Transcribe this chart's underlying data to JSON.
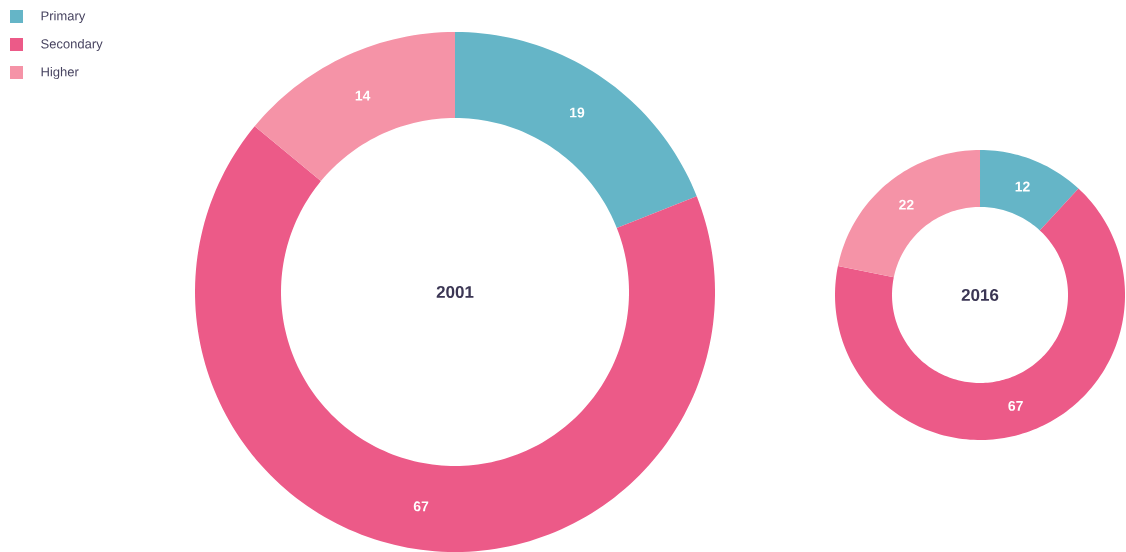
{
  "chart_data": {
    "type": "donut",
    "categories": [
      "Primary",
      "Secondary",
      "Higher"
    ],
    "colors": [
      "#65b5c7",
      "#ec5a88",
      "#f593a7"
    ],
    "series": [
      {
        "name": "2001",
        "values": [
          19,
          67,
          14
        ]
      },
      {
        "name": "2016",
        "values": [
          12,
          67,
          22
        ]
      }
    ],
    "data_labels": true,
    "legend": "top left"
  }
}
